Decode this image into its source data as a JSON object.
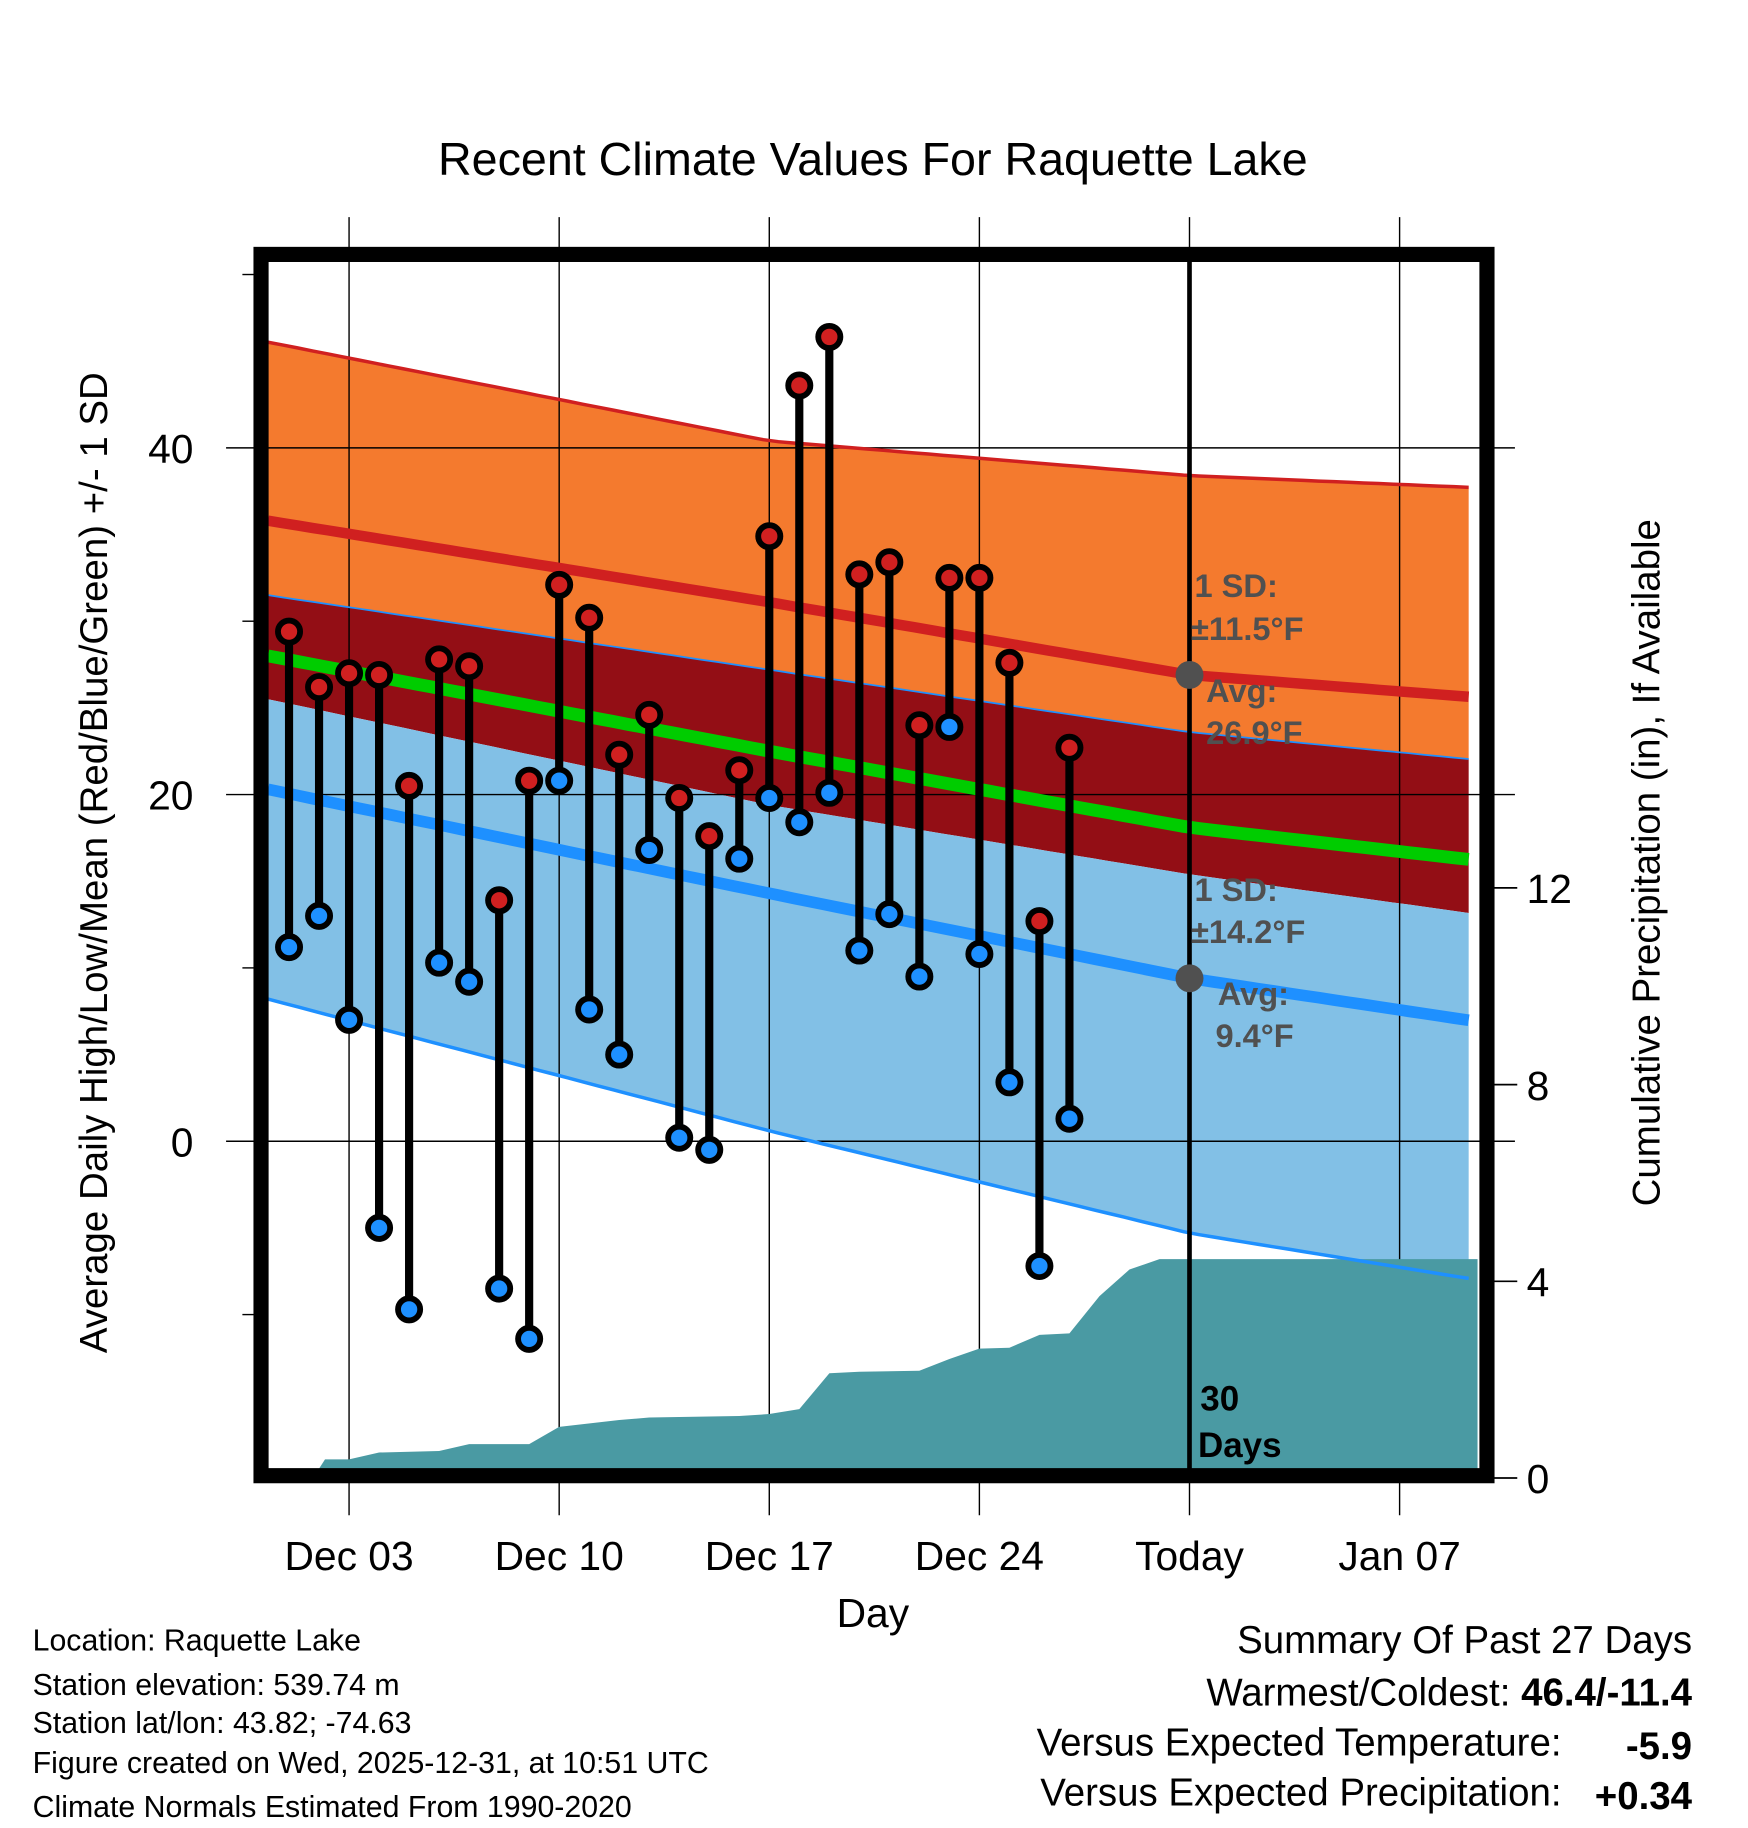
{
  "chart_data": {
    "type": "line",
    "title": "Recent Climate Values For Raquette Lake",
    "xlabel": "Day",
    "ylabel": "Average Daily High/Low/Mean (Red/Blue/Green) +/- 1 SD",
    "y2label": "Cumulative Precipitation (in), If Available",
    "xlim_day_index": [
      0.3,
      40.6
    ],
    "ylim": [
      -19,
      51
    ],
    "y2lim": [
      0,
      16.6
    ],
    "x_ticks": [
      {
        "day": 3,
        "label": "Dec 03"
      },
      {
        "day": 10,
        "label": "Dec 10"
      },
      {
        "day": 17,
        "label": "Dec 17"
      },
      {
        "day": 24,
        "label": "Dec 24"
      },
      {
        "day": 31,
        "label": "Today"
      },
      {
        "day": 38,
        "label": "Jan 07"
      }
    ],
    "y_ticks": [
      0,
      20,
      40
    ],
    "y_minor_ticks": [
      -10,
      10,
      30,
      50
    ],
    "y2_ticks": [
      0,
      4,
      8,
      12
    ],
    "today_day_index": 31,
    "series": [
      {
        "name": "Daily High",
        "color": "#d02020",
        "days": [
          1,
          2,
          3,
          4,
          5,
          6,
          7,
          8,
          9,
          10,
          11,
          12,
          13,
          14,
          15,
          16,
          17,
          18,
          19,
          20,
          21,
          22,
          23,
          24,
          25,
          26,
          27
        ],
        "values": [
          29.4,
          26.2,
          27.0,
          26.9,
          20.5,
          27.8,
          27.4,
          13.9,
          20.8,
          32.1,
          30.2,
          22.3,
          24.6,
          19.8,
          17.6,
          21.4,
          34.9,
          43.6,
          46.4,
          32.7,
          33.4,
          24.0,
          32.5,
          32.5,
          27.6,
          12.7,
          22.7
        ]
      },
      {
        "name": "Daily Low",
        "color": "#1e90ff",
        "days": [
          1,
          2,
          3,
          4,
          5,
          6,
          7,
          8,
          9,
          10,
          11,
          12,
          13,
          14,
          15,
          16,
          17,
          18,
          19,
          20,
          21,
          22,
          23,
          24,
          25,
          26,
          27
        ],
        "values": [
          11.2,
          13.0,
          7.0,
          -5.0,
          -9.7,
          10.3,
          9.2,
          -8.5,
          -11.4,
          20.8,
          7.6,
          5.0,
          16.8,
          0.2,
          -0.5,
          16.3,
          19.8,
          18.4,
          20.1,
          11.0,
          13.1,
          9.5,
          23.9,
          10.8,
          3.4,
          -7.2,
          1.3
        ]
      }
    ],
    "normals": {
      "days": [
        0.3,
        17,
        31,
        40.6
      ],
      "high_plus_sd": [
        46.1,
        40.4,
        38.4,
        37.7
      ],
      "high_mean": [
        35.8,
        31.1,
        26.9,
        25.6
      ],
      "low_plus_sd": [
        31.5,
        27.2,
        23.6,
        22.0
      ],
      "mean": [
        28.0,
        22.5,
        18.1,
        16.2
      ],
      "high_minus_sd": [
        25.5,
        19.4,
        15.4,
        13.1
      ],
      "low_mean": [
        20.3,
        14.3,
        9.4,
        6.9
      ],
      "low_minus_sd": [
        8.2,
        0.6,
        -5.3,
        -8.0
      ]
    },
    "precipitation": {
      "days": [
        0.3,
        1.8,
        2.2,
        3,
        4,
        6,
        7,
        9,
        10,
        12,
        13,
        16,
        17,
        18,
        19,
        20,
        22,
        23,
        24,
        25,
        26,
        27,
        28,
        29,
        30,
        40.6
      ],
      "values": [
        0,
        0,
        0.38,
        0.38,
        0.52,
        0.55,
        0.69,
        0.69,
        1.04,
        1.18,
        1.23,
        1.26,
        1.3,
        1.4,
        2.13,
        2.16,
        2.18,
        2.42,
        2.63,
        2.65,
        2.91,
        2.94,
        3.7,
        4.24,
        4.45,
        4.45
      ]
    },
    "colors": {
      "high_band": "#f47a2e",
      "mid_band": "#930e15",
      "low_band": "#82c0e6",
      "high_line": "#d02020",
      "low_line": "#1e90ff",
      "mean_line": "#00cc00",
      "precip": "#4a9aa3"
    },
    "annotations": {
      "high_sd_label": "1 SD:",
      "high_sd_value": "±11.5°F",
      "high_avg_label": "Avg:",
      "high_avg_value": "26.9°F",
      "low_sd_label": "1 SD:",
      "low_sd_value": "±14.2°F",
      "low_avg_label": "Avg:",
      "low_avg_value": "9.4°F",
      "days_value": "30",
      "days_label": "Days"
    }
  },
  "footer": {
    "location": "Location: Raquette Lake",
    "elevation": "Station elevation: 539.74 m",
    "latlon": "Station lat/lon: 43.82; -74.63",
    "created": "Figure created on Wed, 2025-12-31, at 10:51 UTC",
    "normals": "Climate Normals Estimated From 1990-2020"
  },
  "summary": {
    "title": "Summary Of Past 27 Days",
    "warmest_coldest_label": "Warmest/Coldest: ",
    "warmest_coldest_value": "46.4/-11.4",
    "temp_label": "Versus Expected Temperature:",
    "temp_value": "-5.9",
    "temp_color": "#1e90ff",
    "precip_label": "Versus Expected Precipitation:",
    "precip_value": "+0.34",
    "precip_color": "#22cc22"
  }
}
